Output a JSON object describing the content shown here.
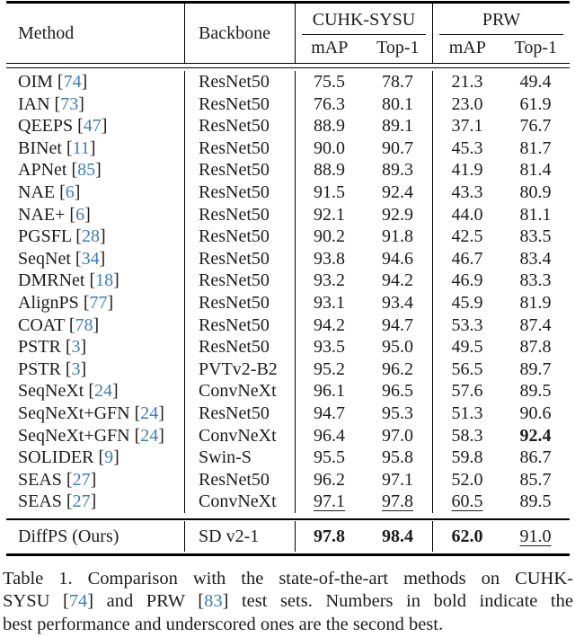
{
  "table": {
    "header": {
      "method": "Method",
      "backbone": "Backbone",
      "group1": "CUHK-SYSU",
      "group2": "PRW",
      "sub": [
        "mAP",
        "Top-1",
        "mAP",
        "Top-1"
      ]
    },
    "rows": [
      {
        "method": "OIM",
        "cite": "74",
        "backbone": "ResNet50",
        "values": [
          "75.5",
          "78.7",
          "21.3",
          "49.4"
        ],
        "styles": [
          "",
          "",
          "",
          ""
        ]
      },
      {
        "method": "IAN",
        "cite": "73",
        "backbone": "ResNet50",
        "values": [
          "76.3",
          "80.1",
          "23.0",
          "61.9"
        ],
        "styles": [
          "",
          "",
          "",
          ""
        ]
      },
      {
        "method": "QEEPS",
        "cite": "47",
        "backbone": "ResNet50",
        "values": [
          "88.9",
          "89.1",
          "37.1",
          "76.7"
        ],
        "styles": [
          "",
          "",
          "",
          ""
        ]
      },
      {
        "method": "BINet",
        "cite": "11",
        "backbone": "ResNet50",
        "values": [
          "90.0",
          "90.7",
          "45.3",
          "81.7"
        ],
        "styles": [
          "",
          "",
          "",
          ""
        ]
      },
      {
        "method": "APNet",
        "cite": "85",
        "backbone": "ResNet50",
        "values": [
          "88.9",
          "89.3",
          "41.9",
          "81.4"
        ],
        "styles": [
          "",
          "",
          "",
          ""
        ]
      },
      {
        "method": "NAE",
        "cite": "6",
        "backbone": "ResNet50",
        "values": [
          "91.5",
          "92.4",
          "43.3",
          "80.9"
        ],
        "styles": [
          "",
          "",
          "",
          ""
        ]
      },
      {
        "method": "NAE+",
        "cite": "6",
        "backbone": "ResNet50",
        "values": [
          "92.1",
          "92.9",
          "44.0",
          "81.1"
        ],
        "styles": [
          "",
          "",
          "",
          ""
        ]
      },
      {
        "method": "PGSFL",
        "cite": "28",
        "backbone": "ResNet50",
        "values": [
          "90.2",
          "91.8",
          "42.5",
          "83.5"
        ],
        "styles": [
          "",
          "",
          "",
          ""
        ]
      },
      {
        "method": "SeqNet",
        "cite": "34",
        "backbone": "ResNet50",
        "values": [
          "93.8",
          "94.6",
          "46.7",
          "83.4"
        ],
        "styles": [
          "",
          "",
          "",
          ""
        ]
      },
      {
        "method": "DMRNet",
        "cite": "18",
        "backbone": "ResNet50",
        "values": [
          "93.2",
          "94.2",
          "46.9",
          "83.3"
        ],
        "styles": [
          "",
          "",
          "",
          ""
        ]
      },
      {
        "method": "AlignPS",
        "cite": "77",
        "backbone": "ResNet50",
        "values": [
          "93.1",
          "93.4",
          "45.9",
          "81.9"
        ],
        "styles": [
          "",
          "",
          "",
          ""
        ]
      },
      {
        "method": "COAT",
        "cite": "78",
        "backbone": "ResNet50",
        "values": [
          "94.2",
          "94.7",
          "53.3",
          "87.4"
        ],
        "styles": [
          "",
          "",
          "",
          ""
        ]
      },
      {
        "method": "PSTR",
        "cite": "3",
        "backbone": "ResNet50",
        "values": [
          "93.5",
          "95.0",
          "49.5",
          "87.8"
        ],
        "styles": [
          "",
          "",
          "",
          ""
        ]
      },
      {
        "method": "PSTR",
        "cite": "3",
        "backbone": "PVTv2-B2",
        "values": [
          "95.2",
          "96.2",
          "56.5",
          "89.7"
        ],
        "styles": [
          "",
          "",
          "",
          ""
        ]
      },
      {
        "method": "SeqNeXt",
        "cite": "24",
        "backbone": "ConvNeXt",
        "values": [
          "96.1",
          "96.5",
          "57.6",
          "89.5"
        ],
        "styles": [
          "",
          "",
          "",
          ""
        ]
      },
      {
        "method": "SeqNeXt+GFN",
        "cite": "24",
        "backbone": "ResNet50",
        "values": [
          "94.7",
          "95.3",
          "51.3",
          "90.6"
        ],
        "styles": [
          "",
          "",
          "",
          ""
        ]
      },
      {
        "method": "SeqNeXt+GFN",
        "cite": "24",
        "backbone": "ConvNeXt",
        "values": [
          "96.4",
          "97.0",
          "58.3",
          "92.4"
        ],
        "styles": [
          "",
          "",
          "",
          "bold"
        ]
      },
      {
        "method": "SOLIDER",
        "cite": "9",
        "backbone": "Swin-S",
        "values": [
          "95.5",
          "95.8",
          "59.8",
          "86.7"
        ],
        "styles": [
          "",
          "",
          "",
          ""
        ]
      },
      {
        "method": "SEAS",
        "cite": "27",
        "backbone": "ResNet50",
        "values": [
          "96.2",
          "97.1",
          "52.0",
          "85.7"
        ],
        "styles": [
          "",
          "",
          "",
          ""
        ]
      },
      {
        "method": "SEAS",
        "cite": "27",
        "backbone": "ConvNeXt",
        "values": [
          "97.1",
          "97.8",
          "60.5",
          "89.5"
        ],
        "styles": [
          "underline",
          "underline",
          "underline",
          ""
        ]
      }
    ],
    "final_row": {
      "method": "DiffPS (Ours)",
      "cite": "",
      "backbone": "SD v2-1",
      "values": [
        "97.8",
        "98.4",
        "62.0",
        "91.0"
      ],
      "styles": [
        "bold",
        "bold",
        "bold",
        "underline"
      ]
    }
  },
  "caption": {
    "lines": [
      {
        "justify": true,
        "parts": [
          {
            "t": "Table 1. Comparison with the state-of-the-art methods on CUHK-"
          }
        ]
      },
      {
        "justify": true,
        "parts": [
          {
            "t": "SYSU ["
          },
          {
            "t": "74",
            "cite": true
          },
          {
            "t": "] and PRW ["
          },
          {
            "t": "83",
            "cite": true
          },
          {
            "t": "] test sets. Numbers in bold indicate the"
          }
        ]
      },
      {
        "justify": false,
        "parts": [
          {
            "t": "best performance and underscored ones are the second best."
          }
        ]
      }
    ]
  },
  "colors": {
    "citation": "#3d7cbe",
    "text": "#1c1c1c",
    "rule": "#000000"
  }
}
